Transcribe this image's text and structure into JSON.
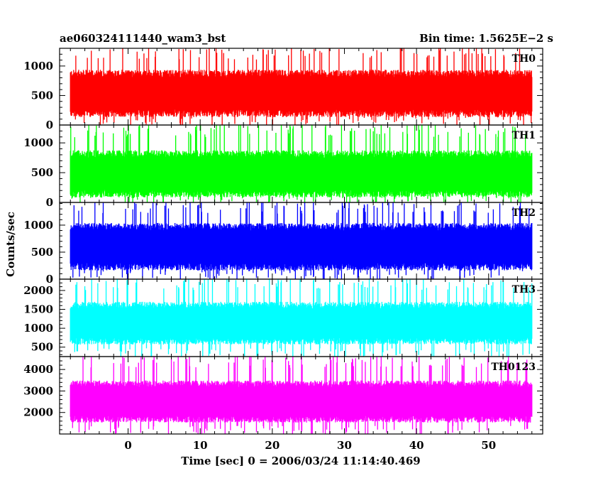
{
  "header": {
    "title": "ae060324111440_wam3_bst",
    "bin_time": "Bin time: 1.5625E−2 s"
  },
  "axes": {
    "xlabel": "Time [sec] 0 = 2006/03/24 11:14:40.469",
    "ylabel": "Counts/sec"
  },
  "chart_data": {
    "type": "line",
    "x_range": [
      -8,
      56
    ],
    "xlim": [
      -9.5,
      57.5
    ],
    "x_ticks": [
      0,
      10,
      20,
      30,
      40,
      50
    ],
    "bin_time": 0.015625,
    "grid": false,
    "panels": [
      {
        "name": "TH0",
        "color": "#ff0000",
        "ylim": [
          0,
          1300
        ],
        "y_ticks": [
          0,
          500,
          1000
        ],
        "typical_band": [
          170,
          900
        ],
        "min": 0,
        "max": 1300
      },
      {
        "name": "TH1",
        "color": "#00ff00",
        "ylim": [
          0,
          1300
        ],
        "y_ticks": [
          0,
          500,
          1000
        ],
        "typical_band": [
          120,
          840
        ],
        "min": 0,
        "max": 1300
      },
      {
        "name": "TH2",
        "color": "#0000ff",
        "ylim": [
          0,
          1420
        ],
        "y_ticks": [
          0,
          500,
          1000
        ],
        "typical_band": [
          200,
          1000
        ],
        "min": 0,
        "max": 1420
      },
      {
        "name": "TH3",
        "color": "#00ffff",
        "ylim": [
          250,
          2300
        ],
        "y_ticks": [
          500,
          1000,
          1500,
          2000
        ],
        "typical_band": [
          620,
          1650
        ],
        "min": 250,
        "max": 2300
      },
      {
        "name": "TH0123",
        "color": "#ff00ff",
        "ylim": [
          1000,
          4600
        ],
        "y_ticks": [
          2000,
          3000,
          4000
        ],
        "typical_band": [
          1620,
          3400
        ],
        "min": 1000,
        "max": 4600
      }
    ]
  }
}
